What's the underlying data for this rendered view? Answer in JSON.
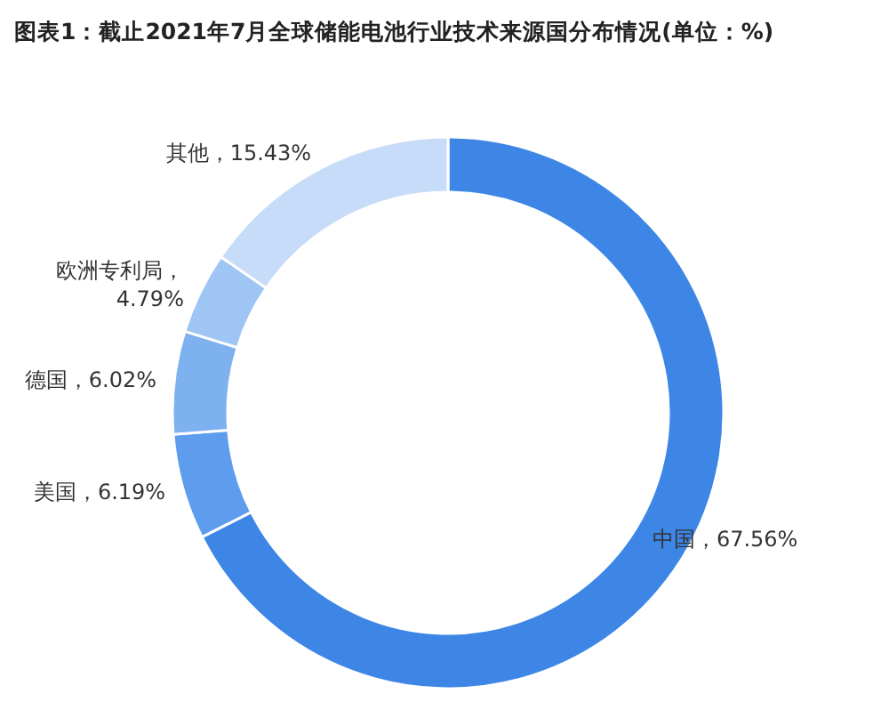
{
  "chart_data": {
    "type": "donut",
    "title": "图表1：截止2021年7月全球储能电池行业技术来源国分布情况(单位：%)",
    "categories": [
      "中国",
      "美国",
      "德国",
      "欧洲专利局",
      "其他"
    ],
    "values": [
      67.56,
      6.19,
      6.02,
      4.79,
      15.43
    ],
    "value_labels": [
      "，67.56%",
      "，6.19%",
      "，6.02%",
      "，\n4.79%",
      "，15.43%"
    ],
    "colors": [
      "#3d86e6",
      "#5e9ded",
      "#7eb1f0",
      "#9fc5f4",
      "#c6dcf8"
    ],
    "legend": false
  }
}
